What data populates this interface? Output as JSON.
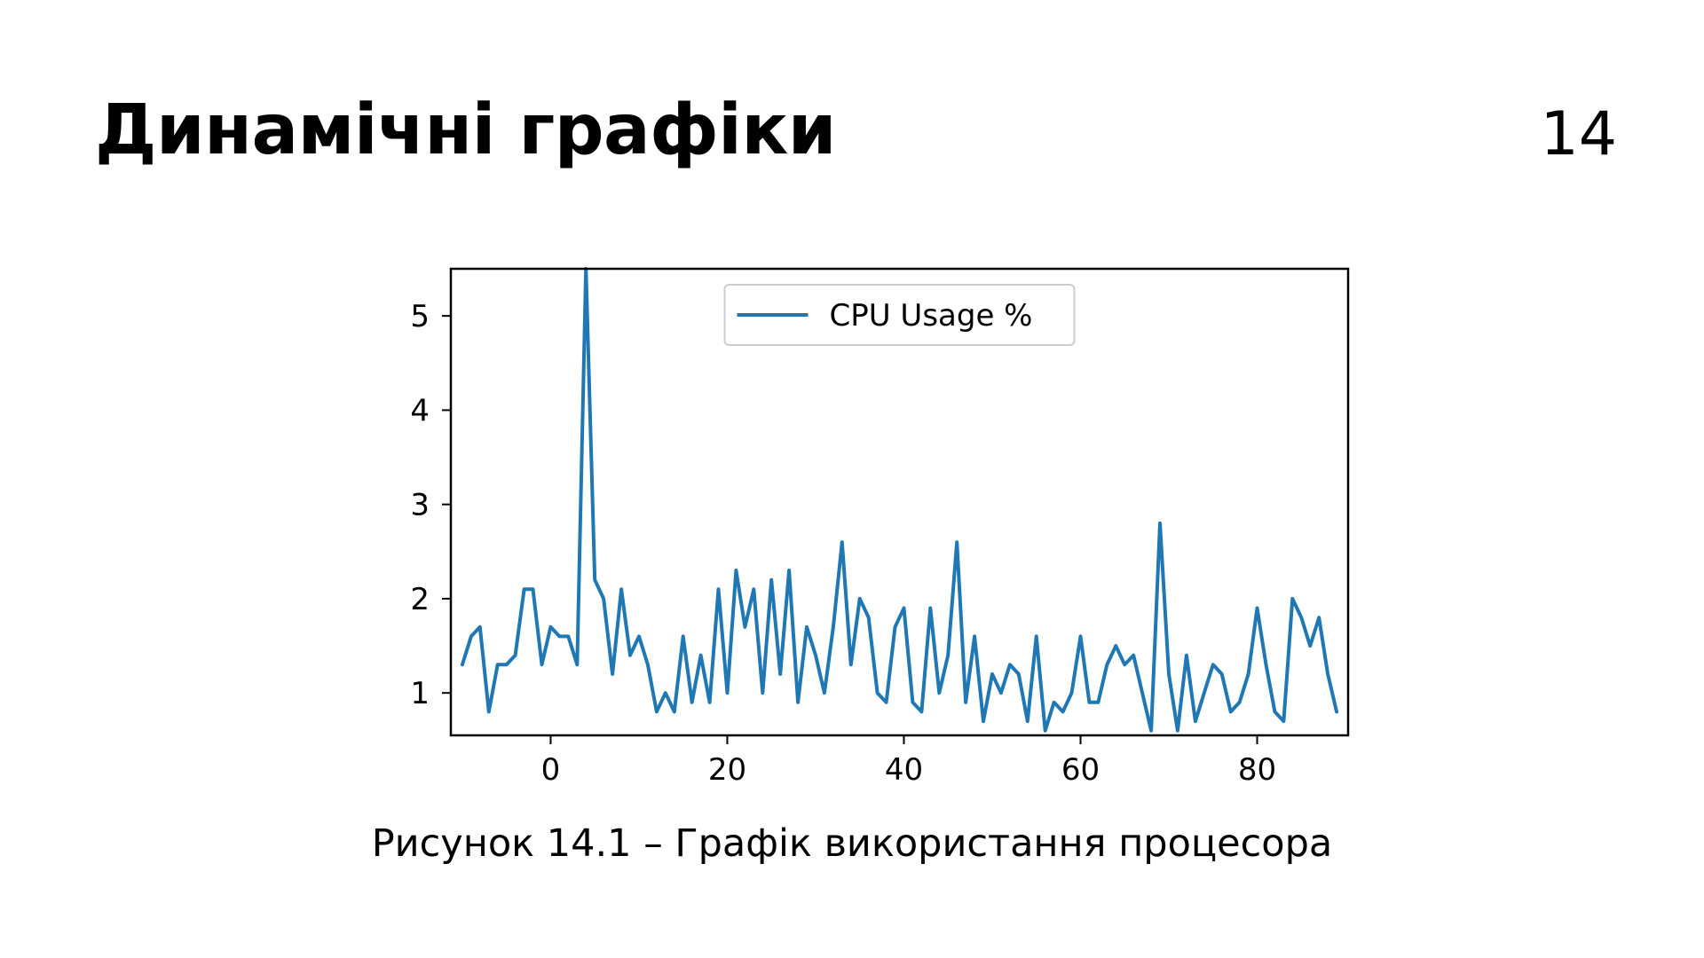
{
  "slide": {
    "title": "Динамічні графіки",
    "page_number": "14",
    "caption": "Рисунок 14.1 – Графік використання процесора"
  },
  "chart_data": {
    "type": "line",
    "title": "",
    "xlabel": "",
    "ylabel": "",
    "xlim": [
      -11.3,
      90.3
    ],
    "ylim": [
      0.55,
      5.5
    ],
    "xticks": [
      0,
      20,
      40,
      60,
      80
    ],
    "yticks": [
      1,
      2,
      3,
      4,
      5
    ],
    "grid": false,
    "legend_position": "upper center",
    "series": [
      {
        "name": "CPU Usage %",
        "color": "#1f77b4",
        "x": [
          -10,
          -9,
          -8,
          -7,
          -6,
          -5,
          -4,
          -3,
          -2,
          -1,
          0,
          1,
          2,
          3,
          4,
          5,
          6,
          7,
          8,
          9,
          10,
          11,
          12,
          13,
          14,
          15,
          16,
          17,
          18,
          19,
          20,
          21,
          22,
          23,
          24,
          25,
          26,
          27,
          28,
          29,
          30,
          31,
          32,
          33,
          34,
          35,
          36,
          37,
          38,
          39,
          40,
          41,
          42,
          43,
          44,
          45,
          46,
          47,
          48,
          49,
          50,
          51,
          52,
          53,
          54,
          55,
          56,
          57,
          58,
          59,
          60,
          61,
          62,
          63,
          64,
          65,
          66,
          67,
          68,
          69,
          70,
          71,
          72,
          73,
          74,
          75,
          76,
          77,
          78,
          79,
          80,
          81,
          82,
          83,
          84,
          85,
          86,
          87,
          88,
          89
        ],
        "values": [
          1.3,
          1.6,
          1.7,
          0.8,
          1.3,
          1.3,
          1.4,
          2.1,
          2.1,
          1.3,
          1.7,
          1.6,
          1.6,
          1.3,
          5.5,
          2.2,
          2.0,
          1.2,
          2.1,
          1.4,
          1.6,
          1.3,
          0.8,
          1.0,
          0.8,
          1.6,
          0.9,
          1.4,
          0.9,
          2.1,
          1.0,
          2.3,
          1.7,
          2.1,
          1.0,
          2.2,
          1.2,
          2.3,
          0.9,
          1.7,
          1.4,
          1.0,
          1.7,
          2.6,
          1.3,
          2.0,
          1.8,
          1.0,
          0.9,
          1.7,
          1.9,
          0.9,
          0.8,
          1.9,
          1.0,
          1.4,
          2.6,
          0.9,
          1.6,
          0.7,
          1.2,
          1.0,
          1.3,
          1.2,
          0.7,
          1.6,
          0.6,
          0.9,
          0.8,
          1.0,
          1.6,
          0.9,
          0.9,
          1.3,
          1.5,
          1.3,
          1.4,
          1.0,
          0.6,
          2.8,
          1.2,
          0.6,
          1.4,
          0.7,
          1.0,
          1.3,
          1.2,
          0.8,
          0.9,
          1.2,
          1.9,
          1.3,
          0.8,
          0.7,
          2.0,
          1.8,
          1.5,
          1.8,
          1.2,
          0.8
        ]
      }
    ]
  }
}
